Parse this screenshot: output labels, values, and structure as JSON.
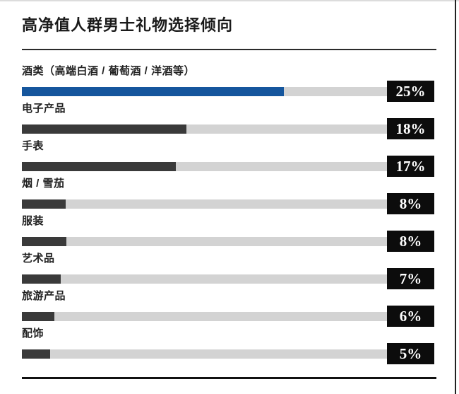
{
  "header": {
    "title": "高净值人群男士礼物选择倾向"
  },
  "chart_data": {
    "type": "bar",
    "orientation": "horizontal",
    "title": "高净值人群男士礼物选择倾向",
    "unit": "%",
    "categories": [
      "酒类（高端白酒 / 葡萄酒 / 洋酒等）",
      "电子产品",
      "手表",
      "烟 / 雪茄",
      "服装",
      "艺术品",
      "旅游产品",
      "配饰"
    ],
    "values": [
      25,
      18,
      17,
      8,
      8,
      7,
      6,
      5
    ],
    "value_labels": [
      "25%",
      "18%",
      "17%",
      "8%",
      "8%",
      "7%",
      "6%",
      "5%"
    ],
    "highlight_index": 0,
    "bar_track_fractions_pct": [
      71.8,
      45.0,
      42.1,
      12.0,
      12.2,
      10.7,
      8.9,
      7.8
    ],
    "colors": {
      "highlight_bar": "#15569d",
      "default_bar": "#3a3a3a",
      "track": "#d3d3d3",
      "value_box_bg": "#0c0c0c",
      "value_text": "#ffffff",
      "title_text": "#1a1a1a"
    },
    "legend": "none",
    "grid": false
  }
}
